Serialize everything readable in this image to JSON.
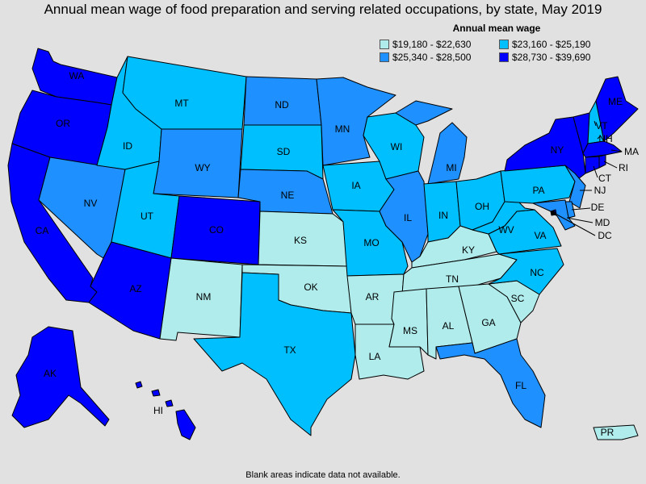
{
  "title": "Annual mean wage of food preparation and serving related occupations, by state, May 2019",
  "legend": {
    "title": "Annual mean wage",
    "bins": [
      {
        "label": "$19,180 - $22,630",
        "color": "#b0ecec"
      },
      {
        "label": "$23,160 - $25,190",
        "color": "#00bfff"
      },
      {
        "label": "$25,340 - $28,500",
        "color": "#1e90ff"
      },
      {
        "label": "$28,730 - $39,690",
        "color": "#0000ff"
      }
    ]
  },
  "footer": "Blank areas indicate data not available.",
  "states": {
    "WA": {
      "label": "WA",
      "bin": 3
    },
    "OR": {
      "label": "OR",
      "bin": 3
    },
    "CA": {
      "label": "CA",
      "bin": 3
    },
    "NV": {
      "label": "NV",
      "bin": 2
    },
    "ID": {
      "label": "ID",
      "bin": 1
    },
    "MT": {
      "label": "MT",
      "bin": 1
    },
    "WY": {
      "label": "WY",
      "bin": 2
    },
    "UT": {
      "label": "UT",
      "bin": 1
    },
    "AZ": {
      "label": "AZ",
      "bin": 3
    },
    "CO": {
      "label": "CO",
      "bin": 3
    },
    "NM": {
      "label": "NM",
      "bin": 0
    },
    "ND": {
      "label": "ND",
      "bin": 2
    },
    "SD": {
      "label": "SD",
      "bin": 1
    },
    "NE": {
      "label": "NE",
      "bin": 2
    },
    "KS": {
      "label": "KS",
      "bin": 0
    },
    "OK": {
      "label": "OK",
      "bin": 0
    },
    "TX": {
      "label": "TX",
      "bin": 1
    },
    "MN": {
      "label": "MN",
      "bin": 2
    },
    "IA": {
      "label": "IA",
      "bin": 1
    },
    "MO": {
      "label": "MO",
      "bin": 1
    },
    "AR": {
      "label": "AR",
      "bin": 0
    },
    "LA": {
      "label": "LA",
      "bin": 0
    },
    "WI": {
      "label": "WI",
      "bin": 1
    },
    "IL": {
      "label": "IL",
      "bin": 2
    },
    "MI": {
      "label": "MI",
      "bin": 2
    },
    "IN": {
      "label": "IN",
      "bin": 1
    },
    "OH": {
      "label": "OH",
      "bin": 1
    },
    "KY": {
      "label": "KY",
      "bin": 0
    },
    "TN": {
      "label": "TN",
      "bin": 0
    },
    "MS": {
      "label": "MS",
      "bin": 0
    },
    "AL": {
      "label": "AL",
      "bin": 0
    },
    "GA": {
      "label": "GA",
      "bin": 0
    },
    "FL": {
      "label": "FL",
      "bin": 2
    },
    "SC": {
      "label": "SC",
      "bin": 0
    },
    "NC": {
      "label": "NC",
      "bin": 1
    },
    "VA": {
      "label": "VA",
      "bin": 1
    },
    "WV": {
      "label": "WV",
      "bin": 1
    },
    "PA": {
      "label": "PA",
      "bin": 1
    },
    "NY": {
      "label": "NY",
      "bin": 3
    },
    "VT": {
      "label": "VT",
      "bin": 3
    },
    "NH": {
      "label": "NH",
      "bin": 1
    },
    "ME": {
      "label": "ME",
      "bin": 3
    },
    "MA": {
      "label": "MA",
      "bin": 3
    },
    "RI": {
      "label": "RI",
      "bin": 3
    },
    "CT": {
      "label": "CT",
      "bin": 3
    },
    "NJ": {
      "label": "NJ",
      "bin": 2
    },
    "DE": {
      "label": "DE",
      "bin": 2
    },
    "MD": {
      "label": "MD",
      "bin": 2
    },
    "DC": {
      "label": "DC",
      "bin": 3
    },
    "AK": {
      "label": "AK",
      "bin": 3
    },
    "HI": {
      "label": "HI",
      "bin": 3
    },
    "PR": {
      "label": "PR",
      "bin": 0
    }
  }
}
